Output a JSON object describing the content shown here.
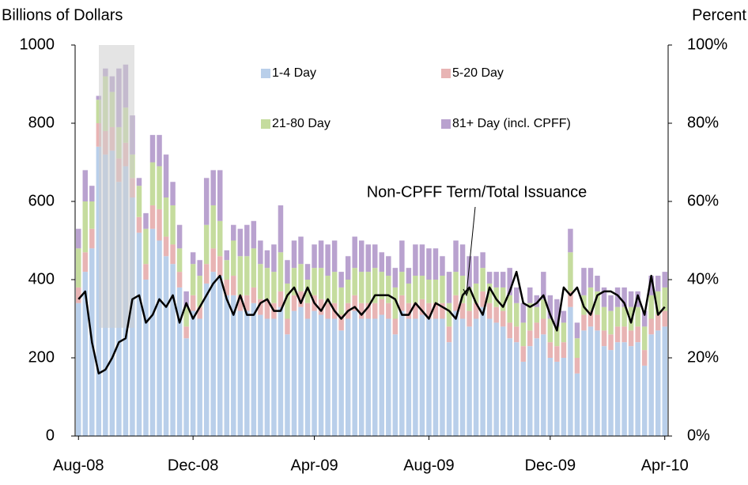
{
  "chart_data": {
    "type": "bar",
    "y_label": "Billions of Dollars",
    "y2_label": "Percent",
    "categories": [
      "Aug-08",
      null,
      null,
      null,
      null,
      null,
      null,
      null,
      null,
      null,
      null,
      null,
      null,
      null,
      null,
      null,
      null,
      "Dec-08",
      null,
      null,
      null,
      null,
      null,
      null,
      null,
      null,
      null,
      null,
      null,
      null,
      null,
      null,
      null,
      null,
      null,
      "Apr-09",
      null,
      null,
      null,
      null,
      null,
      null,
      null,
      null,
      null,
      null,
      null,
      null,
      null,
      null,
      null,
      null,
      "Aug-09",
      null,
      null,
      null,
      null,
      null,
      null,
      null,
      null,
      null,
      null,
      null,
      null,
      null,
      null,
      null,
      null,
      null,
      "Dec-09",
      null,
      null,
      null,
      null,
      null,
      null,
      null,
      null,
      null,
      null,
      null,
      null,
      null,
      null,
      null,
      null,
      "Apr-10"
    ],
    "ylim": [
      0,
      1000
    ],
    "yticks": [
      0,
      200,
      400,
      600,
      800,
      1000
    ],
    "y2lim": [
      0,
      100
    ],
    "y2ticks": [
      {
        "value": 0,
        "label": "0%"
      },
      {
        "value": 20,
        "label": "20%"
      },
      {
        "value": 40,
        "label": "40%"
      },
      {
        "value": 60,
        "label": "60%"
      },
      {
        "value": 80,
        "label": "80%"
      },
      {
        "value": 100,
        "label": "100%"
      }
    ],
    "stacked": true,
    "series": [
      {
        "name": "1-4 Day",
        "color": "#b9cfea",
        "values": [
          340,
          420,
          480,
          740,
          720,
          730,
          650,
          690,
          610,
          520,
          400,
          530,
          500,
          460,
          440,
          380,
          250,
          320,
          300,
          390,
          420,
          410,
          360,
          360,
          320,
          320,
          340,
          310,
          300,
          300,
          330,
          260,
          320,
          330,
          300,
          320,
          310,
          300,
          300,
          270,
          300,
          320,
          300,
          300,
          300,
          310,
          300,
          260,
          320,
          300,
          300,
          310,
          300,
          300,
          300,
          240,
          320,
          300,
          280,
          300,
          330,
          300,
          290,
          280,
          250,
          240,
          190,
          230,
          250,
          260,
          200,
          190,
          200,
          330,
          160,
          270,
          280,
          270,
          230,
          220,
          240,
          240,
          230,
          240,
          180,
          260,
          270,
          280
        ]
      },
      {
        "name": "5-20 Day",
        "color": "#e8b4b4",
        "values": [
          40,
          50,
          50,
          60,
          60,
          60,
          60,
          60,
          50,
          40,
          40,
          60,
          80,
          50,
          50,
          40,
          30,
          40,
          30,
          50,
          60,
          50,
          40,
          50,
          40,
          40,
          40,
          40,
          50,
          40,
          40,
          40,
          40,
          40,
          40,
          40,
          40,
          40,
          40,
          40,
          40,
          40,
          40,
          40,
          40,
          40,
          40,
          40,
          40,
          40,
          40,
          40,
          40,
          40,
          40,
          40,
          40,
          40,
          40,
          40,
          40,
          40,
          40,
          40,
          40,
          40,
          40,
          40,
          40,
          40,
          40,
          40,
          40,
          40,
          40,
          40,
          40,
          40,
          40,
          40,
          40,
          40,
          40,
          40,
          40,
          40,
          40,
          40
        ]
      },
      {
        "name": "21-80 Day",
        "color": "#c5dc9e",
        "values": [
          100,
          130,
          70,
          60,
          140,
          90,
          80,
          90,
          60,
          80,
          90,
          110,
          110,
          100,
          100,
          60,
          50,
          80,
          80,
          100,
          110,
          90,
          50,
          90,
          100,
          100,
          100,
          90,
          80,
          80,
          100,
          90,
          70,
          70,
          60,
          70,
          80,
          70,
          80,
          70,
          60,
          70,
          80,
          80,
          90,
          70,
          70,
          80,
          60,
          50,
          70,
          60,
          60,
          60,
          70,
          60,
          60,
          70,
          60,
          50,
          60,
          50,
          50,
          60,
          70,
          60,
          60,
          70,
          40,
          50,
          60,
          50,
          50,
          100,
          50,
          50,
          60,
          60,
          60,
          60,
          50,
          50,
          60,
          50,
          60,
          60,
          60,
          60
        ]
      },
      {
        "name": "81+ Day (incl. CPFF)",
        "color": "#b9a2cf",
        "values": [
          50,
          80,
          40,
          10,
          20,
          40,
          150,
          110,
          100,
          20,
          40,
          70,
          80,
          110,
          60,
          60,
          40,
          30,
          40,
          120,
          90,
          130,
          25,
          40,
          70,
          80,
          70,
          60,
          45,
          70,
          120,
          60,
          70,
          70,
          40,
          60,
          70,
          80,
          80,
          40,
          60,
          80,
          80,
          70,
          60,
          50,
          50,
          50,
          80,
          40,
          80,
          80,
          80,
          80,
          50,
          80,
          80,
          80,
          80,
          70,
          40,
          30,
          40,
          40,
          70,
          40,
          50,
          40,
          30,
          70,
          60,
          70,
          30,
          60,
          40,
          70,
          50,
          40,
          50,
          40,
          50,
          50,
          40,
          40,
          40,
          50,
          40,
          40
        ]
      },
      {
        "name": "Non-CPFF Term/Total Issuance",
        "color": "#000000",
        "axis": "y2",
        "values": [
          35,
          37,
          24,
          16,
          17,
          20,
          24,
          25,
          35,
          36,
          29,
          31,
          35,
          33,
          36,
          29,
          34,
          30,
          33,
          36,
          39,
          41,
          35,
          31,
          36,
          31,
          31,
          34,
          35,
          32,
          32,
          36,
          38,
          34,
          38,
          34,
          32,
          35,
          32,
          30,
          32,
          33,
          31,
          33,
          36,
          36,
          36,
          35,
          31,
          31,
          34,
          32,
          30,
          34,
          33,
          32,
          30,
          36,
          38,
          34,
          31,
          38,
          35,
          33,
          37,
          42,
          34,
          33,
          34,
          36,
          31,
          27,
          38,
          36,
          38,
          33,
          31,
          36,
          37,
          37,
          36,
          34,
          29,
          36,
          31,
          41,
          31,
          33
        ]
      }
    ]
  }
}
